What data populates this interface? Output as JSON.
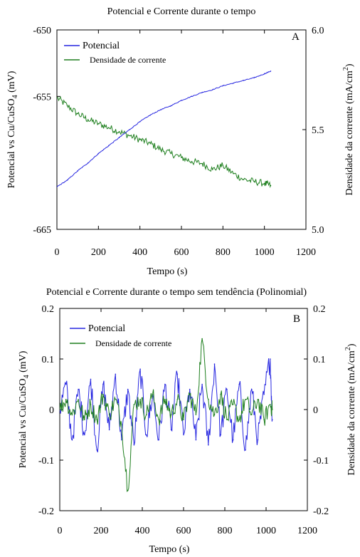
{
  "chart_data": [
    {
      "type": "line",
      "panel_label": "A",
      "title": "Potencial e Corrente durante o tempo",
      "xlabel": "Tempo (s)",
      "ylabel_left": "Potencial vs Cu/CuSO",
      "ylabel_left_sub": "4",
      "ylabel_left_unit": " (mV)",
      "ylabel_right": "Densidade da corrente (mA/cm",
      "ylabel_right_sup": "2",
      "ylabel_right_end": ")",
      "xlim": [
        0,
        1200
      ],
      "ylim_left": [
        -665,
        -650
      ],
      "ylim_right": [
        5.0,
        6.0
      ],
      "xticks": [
        0,
        200,
        400,
        600,
        800,
        1000,
        1200
      ],
      "xtick_labels": [
        "0",
        "200",
        "400",
        "600",
        "800",
        "1000",
        "1200"
      ],
      "yticks_left": [
        -665,
        -655,
        -650
      ],
      "ytick_labels_left": [
        "-665",
        "-655",
        "-650"
      ],
      "yticks_right": [
        5.0,
        5.5,
        6.0
      ],
      "ytick_labels_right": [
        "5.0",
        "5.5",
        "6.0"
      ],
      "legend_position": "top-left",
      "series": [
        {
          "name": "Potencial",
          "axis": "left",
          "color": "#2727e0",
          "x": [
            0,
            50,
            100,
            150,
            200,
            250,
            300,
            350,
            400,
            450,
            500,
            550,
            600,
            650,
            700,
            750,
            800,
            850,
            900,
            950,
            1000,
            1030
          ],
          "y": [
            -661.8,
            -661.3,
            -660.6,
            -660.0,
            -659.3,
            -658.7,
            -658.1,
            -657.5,
            -656.9,
            -656.4,
            -656.0,
            -655.7,
            -655.3,
            -655.0,
            -654.7,
            -654.5,
            -654.2,
            -654.0,
            -653.8,
            -653.6,
            -653.3,
            -653.1
          ]
        },
        {
          "name": "Densidade de corrente",
          "axis": "right",
          "color": "#1e7f1e",
          "x": [
            0,
            50,
            100,
            150,
            200,
            250,
            300,
            350,
            400,
            450,
            500,
            550,
            600,
            650,
            700,
            750,
            800,
            850,
            900,
            950,
            1000,
            1030
          ],
          "y": [
            5.66,
            5.62,
            5.58,
            5.55,
            5.53,
            5.51,
            5.49,
            5.47,
            5.45,
            5.43,
            5.4,
            5.38,
            5.36,
            5.34,
            5.33,
            5.3,
            5.32,
            5.28,
            5.25,
            5.24,
            5.23,
            5.22
          ]
        }
      ]
    },
    {
      "type": "line",
      "panel_label": "B",
      "title": "Potencial e Corrente durante o tempo sem tendência (Polinomial)",
      "xlabel": "Tempo (s)",
      "ylabel_left": "Potencial vs Cu/CuSO",
      "ylabel_left_sub": "4",
      "ylabel_left_unit": " (mV)",
      "ylabel_right": "Densidade da corrente (mA/cm",
      "ylabel_right_sup": "2",
      "ylabel_right_end": ")",
      "xlim": [
        0,
        1200
      ],
      "ylim_left": [
        -0.2,
        0.2
      ],
      "ylim_right": [
        -0.2,
        0.2
      ],
      "xticks": [
        0,
        200,
        400,
        600,
        800,
        1000,
        1200
      ],
      "xtick_labels": [
        "0",
        "200",
        "400",
        "600",
        "800",
        "1000",
        "1200"
      ],
      "yticks_left": [
        -0.2,
        -0.1,
        0,
        0.1,
        0.2
      ],
      "ytick_labels_left": [
        "-0.2",
        "-0.1",
        "0",
        "0.1",
        "0.2"
      ],
      "yticks_right": [
        -0.2,
        -0.1,
        0,
        0.1,
        0.2
      ],
      "ytick_labels_right": [
        "-0.2",
        "-0.1",
        "0",
        "0.1",
        "0.2"
      ],
      "legend_position": "top-left",
      "series": [
        {
          "name": "Potencial",
          "axis": "left",
          "color": "#2727e0",
          "x": [
            0,
            30,
            60,
            90,
            120,
            150,
            180,
            210,
            240,
            270,
            300,
            330,
            360,
            390,
            420,
            450,
            480,
            510,
            540,
            570,
            600,
            630,
            660,
            690,
            720,
            750,
            780,
            810,
            840,
            870,
            900,
            930,
            960,
            990,
            1020,
            1030
          ],
          "y": [
            0.0,
            0.05,
            -0.06,
            0.04,
            -0.05,
            0.06,
            -0.08,
            0.05,
            -0.04,
            0.07,
            -0.06,
            0.04,
            -0.07,
            0.08,
            -0.05,
            0.03,
            -0.06,
            0.05,
            -0.04,
            0.07,
            -0.05,
            0.04,
            -0.06,
            0.05,
            -0.07,
            0.09,
            -0.05,
            0.04,
            -0.06,
            0.05,
            -0.08,
            0.04,
            -0.06,
            0.03,
            0.1,
            -0.02
          ]
        },
        {
          "name": "Densidade de corrente",
          "axis": "right",
          "color": "#1e7f1e",
          "x": [
            0,
            30,
            60,
            90,
            120,
            150,
            180,
            210,
            240,
            270,
            300,
            330,
            360,
            390,
            420,
            450,
            480,
            510,
            540,
            570,
            600,
            630,
            660,
            690,
            720,
            750,
            780,
            810,
            840,
            870,
            900,
            930,
            960,
            990,
            1020,
            1030
          ],
          "y": [
            0.0,
            0.02,
            -0.01,
            0.02,
            -0.02,
            0.01,
            -0.02,
            0.03,
            -0.01,
            0.02,
            -0.03,
            -0.16,
            0.01,
            0.02,
            -0.01,
            0.03,
            -0.02,
            0.02,
            -0.01,
            0.02,
            -0.02,
            0.03,
            -0.01,
            0.14,
            0.02,
            -0.01,
            0.03,
            -0.02,
            0.01,
            -0.02,
            0.02,
            -0.01,
            0.02,
            -0.02,
            0.01,
            0.0
          ]
        }
      ]
    }
  ]
}
